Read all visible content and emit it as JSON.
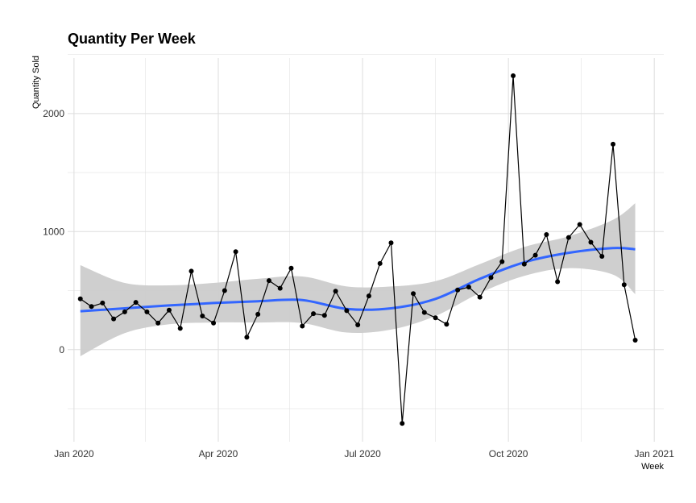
{
  "chart_data": {
    "type": "line",
    "title": "Quantity Per Week",
    "xlabel": "Week",
    "ylabel": "Quantity Sold",
    "x_ticks": [
      "2020-01-01",
      "2020-04-01",
      "2020-07-01",
      "2020-10-01",
      "2021-01-01"
    ],
    "x_tick_labels": [
      "Jan 2020",
      "Apr 2020",
      "Jul 2020",
      "Oct 2020",
      "Jan 2021"
    ],
    "y_ticks": [
      0,
      1000,
      2000
    ],
    "y_tick_labels": [
      "0",
      "1000",
      "2000"
    ],
    "xlim": [
      "2019-12-28",
      "2021-01-07"
    ],
    "ylim": [
      -780,
      2470
    ],
    "grid": true,
    "colors": {
      "points": "#000000",
      "line": "#000000",
      "smooth": "#3366FF",
      "ribbon": "#CCCCCC",
      "grid": "#DDDDDD"
    },
    "series": [
      {
        "x": [
          "2020-01-05",
          "2020-01-12",
          "2020-01-19",
          "2020-01-26",
          "2020-02-02",
          "2020-02-09",
          "2020-02-16",
          "2020-02-23",
          "2020-03-01",
          "2020-03-08",
          "2020-03-15",
          "2020-03-22",
          "2020-03-29",
          "2020-04-05",
          "2020-04-12",
          "2020-04-19",
          "2020-04-26",
          "2020-05-03",
          "2020-05-10",
          "2020-05-17",
          "2020-05-24",
          "2020-05-31",
          "2020-06-07",
          "2020-06-14",
          "2020-06-21",
          "2020-06-28",
          "2020-07-05",
          "2020-07-12",
          "2020-07-19",
          "2020-07-26",
          "2020-08-02",
          "2020-08-09",
          "2020-08-16",
          "2020-08-23",
          "2020-08-30",
          "2020-09-06",
          "2020-09-13",
          "2020-09-20",
          "2020-09-27",
          "2020-10-04",
          "2020-10-11",
          "2020-10-18",
          "2020-10-25",
          "2020-11-01",
          "2020-11-08",
          "2020-11-15",
          "2020-11-22",
          "2020-11-29",
          "2020-12-06",
          "2020-12-13",
          "2020-12-20"
        ],
        "values": [
          430,
          365,
          395,
          260,
          320,
          400,
          320,
          225,
          335,
          180,
          665,
          285,
          225,
          500,
          830,
          105,
          300,
          585,
          520,
          690,
          200,
          305,
          290,
          495,
          330,
          210,
          455,
          730,
          905,
          -625,
          475,
          315,
          270,
          215,
          505,
          530,
          445,
          610,
          745,
          2320,
          725,
          800,
          975,
          575,
          950,
          1060,
          910,
          790,
          1740,
          550,
          80
        ]
      }
    ],
    "smooth": {
      "x": [
        "2020-01-05",
        "2020-02-02",
        "2020-03-01",
        "2020-03-29",
        "2020-04-26",
        "2020-05-24",
        "2020-06-21",
        "2020-07-19",
        "2020-08-16",
        "2020-09-13",
        "2020-10-11",
        "2020-11-08",
        "2020-12-06",
        "2020-12-20"
      ],
      "y": [
        325,
        350,
        375,
        395,
        410,
        420,
        345,
        350,
        430,
        600,
        740,
        820,
        860,
        850
      ],
      "lower": [
        -55,
        140,
        215,
        230,
        230,
        225,
        145,
        170,
        285,
        480,
        625,
        690,
        635,
        470
      ],
      "upper": [
        715,
        565,
        545,
        565,
        600,
        620,
        535,
        535,
        580,
        725,
        870,
        960,
        1100,
        1240
      ]
    }
  }
}
